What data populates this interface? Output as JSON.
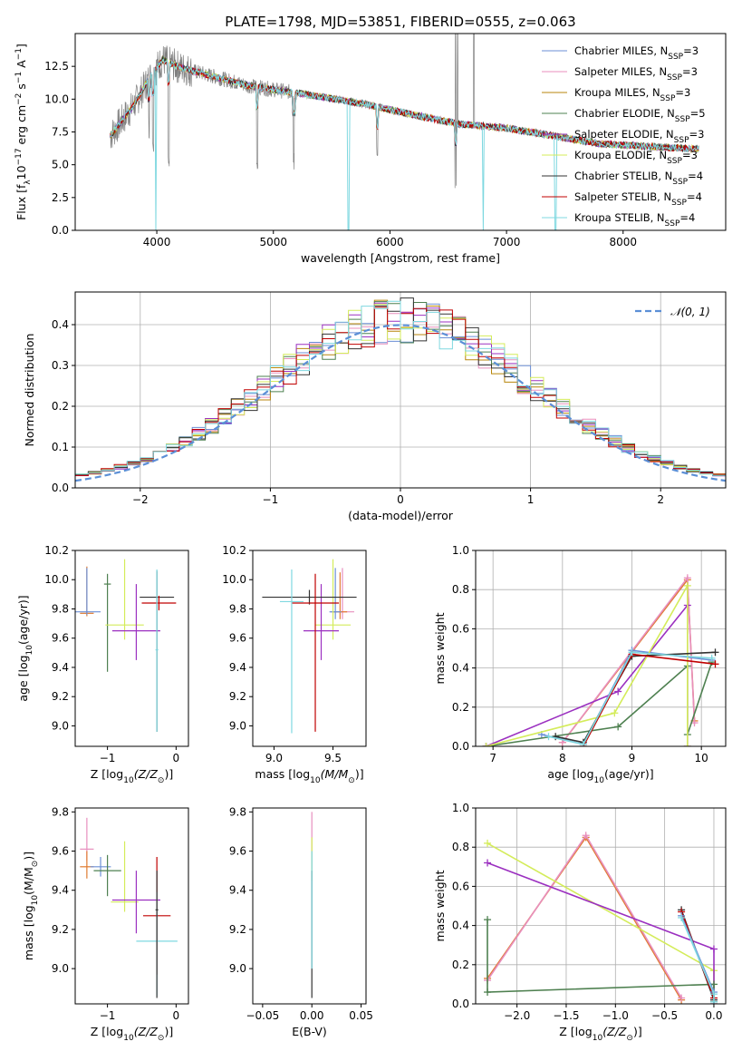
{
  "figure": {
    "title": "PLATE=1798, MJD=53851, FIBERID=0555, z=0.063"
  },
  "chart_data": [
    {
      "id": "spectrum",
      "type": "line",
      "xlabel": "wavelength [Angstrom, rest frame]",
      "ylabel": "Flux [f",
      "ylabel_sub": "λ",
      "ylabel_rest": "10",
      "ylabel_sup1": "−17",
      "ylabel_rest2": " erg cm",
      "ylabel_sup2": "−2",
      "ylabel_rest3": " s",
      "ylabel_sup3": "−1",
      "ylabel_rest4": " A",
      "ylabel_sup4": "−1",
      "ylabel_end": "]",
      "xlim": [
        3300,
        8880
      ],
      "ylim": [
        0,
        15
      ],
      "xticks": [
        4000,
        5000,
        6000,
        7000,
        8000
      ],
      "xtick_labels": [
        "4000",
        "5000",
        "6000",
        "7000",
        "8000"
      ],
      "yticks": [
        0,
        2.5,
        5,
        7.5,
        10,
        12.5
      ],
      "ytick_labels": [
        "0.0",
        "2.5",
        "5.0",
        "7.5",
        "10.0",
        "12.5"
      ],
      "legend_position": "top-right",
      "legend": [
        {
          "pre": "Chabrier MILES, N",
          "sub": "SSP",
          "post": "=3",
          "color": "#6b8fd6"
        },
        {
          "pre": "Salpeter MILES, N",
          "sub": "SSP",
          "post": "=3",
          "color": "#e88fbe"
        },
        {
          "pre": "Kroupa MILES, N",
          "sub": "SSP",
          "post": "=3",
          "color": "#b8860b"
        },
        {
          "pre": "Chabrier ELODIE, N",
          "sub": "SSP",
          "post": "=5",
          "color": "#4e8050"
        },
        {
          "pre": "Salpeter ELODIE, N",
          "sub": "SSP",
          "post": "=3",
          "color": "#9b30c0"
        },
        {
          "pre": "Kroupa ELODIE, N",
          "sub": "SSP",
          "post": "=3",
          "color": "#d4ec5a"
        },
        {
          "pre": "Chabrier STELIB, N",
          "sub": "SSP",
          "post": "=4",
          "color": "#333333"
        },
        {
          "pre": "Salpeter STELIB, N",
          "sub": "SSP",
          "post": "=4",
          "color": "#c00000"
        },
        {
          "pre": "Kroupa STELIB, N",
          "sub": "SSP",
          "post": "=4",
          "color": "#7fd8e0"
        }
      ],
      "data_color": "#808080",
      "continuum": [
        [
          3600,
          7.2
        ],
        [
          3800,
          9.5
        ],
        [
          3950,
          11.8
        ],
        [
          4050,
          13.0
        ],
        [
          4200,
          12.4
        ],
        [
          4500,
          11.7
        ],
        [
          4800,
          11.0
        ],
        [
          5100,
          10.6
        ],
        [
          5400,
          10.2
        ],
        [
          5800,
          9.6
        ],
        [
          6200,
          8.8
        ],
        [
          6600,
          8.1
        ],
        [
          7000,
          7.8
        ],
        [
          7400,
          7.2
        ],
        [
          7800,
          6.6
        ],
        [
          8200,
          6.4
        ],
        [
          8650,
          6.2
        ]
      ],
      "absorption_features": [
        [
          3933,
          7.0
        ],
        [
          3968,
          6.0
        ],
        [
          4102,
          4.0
        ],
        [
          4861,
          3.5
        ],
        [
          5175,
          4.5
        ],
        [
          5890,
          4.5
        ],
        [
          6563,
          3.0
        ]
      ],
      "model_dips": [
        [
          3990,
          0
        ],
        [
          5645,
          0
        ],
        [
          6800,
          0
        ],
        [
          7420,
          0
        ]
      ],
      "emission_spikes": [
        [
          6563,
          15
        ],
        [
          6580,
          15
        ],
        [
          6720,
          15
        ]
      ]
    },
    {
      "id": "residuals",
      "type": "histogram",
      "xlabel": "(data-model)/error",
      "ylabel": "Normed distribution",
      "xlim": [
        -2.5,
        2.5
      ],
      "ylim": [
        0,
        0.48
      ],
      "xticks": [
        -2,
        -1,
        0,
        1,
        2
      ],
      "xtick_labels": [
        "−2",
        "−1",
        "0",
        "1",
        "2"
      ],
      "yticks": [
        0,
        0.1,
        0.2,
        0.3,
        0.4
      ],
      "ytick_labels": [
        "0.0",
        "0.1",
        "0.2",
        "0.3",
        "0.4"
      ],
      "grid": true,
      "legend_position": "top-right",
      "normal_label": "𝒩(0, 1)",
      "normal_color": "#5b8fd6",
      "bin_width": 0.1
    },
    {
      "id": "age-vs-Z",
      "type": "errorbar",
      "xlabel": "Z [log",
      "xlabel_sub": "10",
      "xlabel_rest": "(Z/Z",
      "xlabel_sub2": "⊙",
      "xlabel_end": ")]",
      "ylabel": "age  [log",
      "ylabel_sub": "10",
      "ylabel_rest": "(age/yr)]",
      "xlim": [
        -1.47,
        0.18
      ],
      "ylim": [
        8.86,
        10.2
      ],
      "xticks": [
        -1,
        0
      ],
      "xtick_labels": [
        "−1",
        "0"
      ],
      "yticks": [
        9.0,
        9.2,
        9.4,
        9.6,
        9.8,
        10.0,
        10.2
      ],
      "ytick_labels": [
        "9.0",
        "9.2",
        "9.4",
        "9.6",
        "9.8",
        "10.0",
        "10.2"
      ],
      "points": [
        {
          "x": -1.3,
          "y": 9.77,
          "xerr": 0.1,
          "yerr": [
            0.02,
            0.32
          ],
          "color": "#e07b30"
        },
        {
          "x": -1.3,
          "y": 9.78,
          "xerr": 0.2,
          "yerr": [
            0.02,
            0.3
          ],
          "color": "#6b8fd6"
        },
        {
          "x": -1.0,
          "y": 9.97,
          "xerr": 0.05,
          "yerr": [
            0.6,
            0.07
          ],
          "color": "#4e8050"
        },
        {
          "x": -0.75,
          "y": 9.69,
          "xerr": 0.28,
          "yerr": [
            0.1,
            0.45
          ],
          "color": "#d4ec5a"
        },
        {
          "x": -0.58,
          "y": 9.65,
          "xerr": 0.35,
          "yerr": [
            0.2,
            0.32
          ],
          "color": "#9b30c0"
        },
        {
          "x": -0.28,
          "y": 9.88,
          "xerr": 0.25,
          "yerr": [
            0.92,
            0.18
          ],
          "color": "#333333"
        },
        {
          "x": -0.25,
          "y": 9.84,
          "xerr": 0.25,
          "yerr": [
            0.05,
            0.05
          ],
          "color": "#c00000"
        },
        {
          "x": -0.28,
          "y": 9.52,
          "xerr": 0.02,
          "yerr": [
            0.56,
            0.55
          ],
          "color": "#7fd8e0"
        }
      ]
    },
    {
      "id": "age-vs-mass",
      "type": "errorbar",
      "xlabel": "mass [log",
      "xlabel_sub": "10",
      "xlabel_rest": "(M/M",
      "xlabel_sub2": "⊙",
      "xlabel_end": ")]",
      "ylabel": "",
      "xlim": [
        8.82,
        9.78
      ],
      "ylim": [
        8.86,
        10.2
      ],
      "xticks": [
        9.0,
        9.5
      ],
      "xtick_labels": [
        "9.0",
        "9.5"
      ],
      "yticks": [
        9.0,
        9.2,
        9.4,
        9.6,
        9.8,
        10.0,
        10.2
      ],
      "ytick_labels": [
        "9.0",
        "9.2",
        "9.4",
        "9.6",
        "9.8",
        "10.0",
        "10.2"
      ],
      "points": [
        {
          "x": 9.58,
          "y": 9.78,
          "xerr": 0.1,
          "yerr": [
            0.05,
            0.3
          ],
          "color": "#e88fbe"
        },
        {
          "x": 9.56,
          "y": 9.78,
          "xerr": 0.06,
          "yerr": [
            0.05,
            0.27
          ],
          "color": "#e07b30"
        },
        {
          "x": 9.52,
          "y": 9.78,
          "xerr": 0.05,
          "yerr": [
            0.05,
            0.3
          ],
          "color": "#6b8fd6"
        },
        {
          "x": 9.5,
          "y": 9.69,
          "xerr": 0.15,
          "yerr": [
            0.1,
            0.45
          ],
          "color": "#d4ec5a"
        },
        {
          "x": 9.4,
          "y": 9.65,
          "xerr": 0.15,
          "yerr": [
            0.2,
            0.32
          ],
          "color": "#9b30c0"
        },
        {
          "x": 9.3,
          "y": 9.88,
          "xerr": 0.4,
          "yerr": [
            0.05,
            0.05
          ],
          "color": "#333333"
        },
        {
          "x": 9.35,
          "y": 9.84,
          "xerr": 0.2,
          "yerr": [
            0.88,
            0.2
          ],
          "color": "#c00000"
        },
        {
          "x": 9.15,
          "y": 9.85,
          "xerr": 0.1,
          "yerr": [
            0.9,
            0.22
          ],
          "color": "#7fd8e0"
        }
      ]
    },
    {
      "id": "weight-vs-age",
      "type": "line",
      "xlabel": "age  [log",
      "xlabel_sub": "10",
      "xlabel_rest": "(age/yr)]",
      "ylabel": "mass weight",
      "xlim": [
        6.75,
        10.35
      ],
      "ylim": [
        0,
        1.0
      ],
      "xticks": [
        7,
        8,
        9,
        10
      ],
      "xtick_labels": [
        "7",
        "8",
        "9",
        "10"
      ],
      "yticks": [
        0,
        0.2,
        0.4,
        0.6,
        0.8,
        1.0
      ],
      "ytick_labels": [
        "0.0",
        "0.2",
        "0.4",
        "0.6",
        "0.8",
        "1.0"
      ],
      "grid": true,
      "series": [
        {
          "color": "#e07b30",
          "points": [
            [
              8.0,
              0.02
            ],
            [
              9.8,
              0.85
            ],
            [
              9.9,
              0.13
            ]
          ]
        },
        {
          "color": "#e88fbe",
          "points": [
            [
              8.0,
              0.02
            ],
            [
              9.8,
              0.86
            ],
            [
              9.9,
              0.12
            ]
          ]
        },
        {
          "color": "#6b8fd6",
          "points": [
            [
              7.7,
              0.06
            ],
            [
              8.3,
              0.01
            ],
            [
              9.0,
              0.49
            ],
            [
              10.15,
              0.44
            ]
          ]
        },
        {
          "color": "#4e8050",
          "points": [
            [
              6.9,
              0.0
            ],
            [
              8.8,
              0.1
            ],
            [
              9.8,
              0.41
            ],
            [
              9.8,
              0.06
            ],
            [
              10.15,
              0.43
            ]
          ]
        },
        {
          "color": "#9b30c0",
          "points": [
            [
              6.9,
              0.0
            ],
            [
              8.8,
              0.28
            ],
            [
              9.8,
              0.72
            ],
            [
              9.8,
              0.0
            ]
          ]
        },
        {
          "color": "#d4ec5a",
          "points": [
            [
              6.9,
              0.0
            ],
            [
              8.75,
              0.17
            ],
            [
              9.8,
              0.82
            ],
            [
              9.8,
              0.0
            ]
          ]
        },
        {
          "color": "#333333",
          "points": [
            [
              7.9,
              0.05
            ],
            [
              8.3,
              0.02
            ],
            [
              9.0,
              0.46
            ],
            [
              10.2,
              0.48
            ]
          ]
        },
        {
          "color": "#c00000",
          "points": [
            [
              8.3,
              0.0
            ],
            [
              9.0,
              0.47
            ],
            [
              10.2,
              0.42
            ]
          ]
        },
        {
          "color": "#7fd8e0",
          "points": [
            [
              7.8,
              0.05
            ],
            [
              8.3,
              0.01
            ],
            [
              9.0,
              0.48
            ],
            [
              10.15,
              0.45
            ]
          ]
        }
      ]
    },
    {
      "id": "mass-vs-Z",
      "type": "errorbar",
      "xlabel": "Z [log",
      "xlabel_sub": "10",
      "xlabel_rest": "(Z/Z",
      "xlabel_sub2": "⊙",
      "xlabel_end": ")]",
      "ylabel": "mass [log",
      "ylabel_sub": "10",
      "ylabel_rest": "(M/M",
      "ylabel_sub2": "⊙",
      "ylabel_end": ")]",
      "xlim": [
        -1.47,
        0.18
      ],
      "ylim": [
        8.82,
        9.82
      ],
      "xticks": [
        -1,
        0
      ],
      "xtick_labels": [
        "−1",
        "0"
      ],
      "yticks": [
        9.0,
        9.2,
        9.4,
        9.6,
        9.8
      ],
      "ytick_labels": [
        "9.0",
        "9.2",
        "9.4",
        "9.6",
        "9.8"
      ],
      "points": [
        {
          "x": -1.3,
          "y": 9.61,
          "xerr": 0.1,
          "yerr": [
            0.06,
            0.16
          ],
          "color": "#e88fbe"
        },
        {
          "x": -1.3,
          "y": 9.52,
          "xerr": 0.1,
          "yerr": [
            0.06,
            0.08
          ],
          "color": "#e07b30"
        },
        {
          "x": -1.1,
          "y": 9.52,
          "xerr": 0.15,
          "yerr": [
            0.05,
            0.05
          ],
          "color": "#6b8fd6"
        },
        {
          "x": -1.0,
          "y": 9.5,
          "xerr": 0.2,
          "yerr": [
            0.13,
            0.08
          ],
          "color": "#4e8050"
        },
        {
          "x": -0.75,
          "y": 9.34,
          "xerr": 0.2,
          "yerr": [
            0.05,
            0.31
          ],
          "color": "#d4ec5a"
        },
        {
          "x": -0.58,
          "y": 9.35,
          "xerr": 0.35,
          "yerr": [
            0.17,
            0.15
          ],
          "color": "#9b30c0"
        },
        {
          "x": -0.28,
          "y": 9.27,
          "xerr": 0.2,
          "yerr": [
            0.3,
            0.3
          ],
          "color": "#c00000"
        },
        {
          "x": -0.28,
          "y": 9.14,
          "xerr": 0.3,
          "yerr": [
            0.28,
            0.25
          ],
          "color": "#7fd8e0"
        },
        {
          "x": -0.28,
          "y": 9.3,
          "xerr": 0.02,
          "yerr": [
            0.45,
            0.2
          ],
          "color": "#333333"
        }
      ]
    },
    {
      "id": "mass-vs-ebv",
      "type": "errorbar",
      "xlabel": "E(B-V)",
      "ylabel": "",
      "xlim": [
        -0.06,
        0.055
      ],
      "ylim": [
        8.82,
        9.82
      ],
      "xticks": [
        -0.05,
        0,
        0.05
      ],
      "xtick_labels": [
        "−0.05",
        "0.00",
        "0.05"
      ],
      "yticks": [
        9.0,
        9.2,
        9.4,
        9.6,
        9.8
      ],
      "ytick_labels": [
        "9.0",
        "9.2",
        "9.4",
        "9.6",
        "9.8"
      ],
      "points": [
        {
          "x": 0.0,
          "y": 9.6,
          "xerr": 0,
          "yerr": [
            0.1,
            0.2
          ],
          "color": "#e88fbe"
        },
        {
          "x": 0.0,
          "y": 9.55,
          "xerr": 0,
          "yerr": [
            0.1,
            0.12
          ],
          "color": "#d4ec5a"
        },
        {
          "x": 0.0,
          "y": 9.4,
          "xerr": 0,
          "yerr": [
            0.55,
            0.1
          ],
          "color": "#333333"
        },
        {
          "x": 0.0,
          "y": 9.3,
          "xerr": 0,
          "yerr": [
            0.3,
            0.3
          ],
          "color": "#7fd8e0"
        }
      ]
    },
    {
      "id": "weight-vs-Z",
      "type": "line",
      "xlabel": "Z [log",
      "xlabel_sub": "10",
      "xlabel_rest": "(Z/Z",
      "xlabel_sub2": "⊙",
      "xlabel_end": ")]",
      "ylabel": "mass weight",
      "xlim": [
        -2.42,
        0.12
      ],
      "ylim": [
        0,
        1.0
      ],
      "xticks": [
        -2.0,
        -1.5,
        -1.0,
        -0.5,
        0.0
      ],
      "xtick_labels": [
        "−2.0",
        "−1.5",
        "−1.0",
        "−0.5",
        "0.0"
      ],
      "yticks": [
        0,
        0.2,
        0.4,
        0.6,
        0.8,
        1.0
      ],
      "ytick_labels": [
        "0.0",
        "0.2",
        "0.4",
        "0.6",
        "0.8",
        "1.0"
      ],
      "grid": true,
      "series": [
        {
          "color": "#e07b30",
          "points": [
            [
              -2.3,
              0.13
            ],
            [
              -1.3,
              0.85
            ],
            [
              -0.33,
              0.02
            ]
          ]
        },
        {
          "color": "#e88fbe",
          "points": [
            [
              -2.3,
              0.12
            ],
            [
              -1.3,
              0.86
            ],
            [
              -0.33,
              0.03
            ]
          ]
        },
        {
          "color": "#d4ec5a",
          "points": [
            [
              -2.3,
              0.82
            ],
            [
              0.0,
              0.17
            ],
            [
              0.0,
              0.0
            ]
          ]
        },
        {
          "color": "#9b30c0",
          "points": [
            [
              -2.3,
              0.72
            ],
            [
              0.0,
              0.28
            ],
            [
              0.0,
              0.0
            ]
          ]
        },
        {
          "color": "#4e8050",
          "points": [
            [
              -2.3,
              0.43
            ],
            [
              -2.3,
              0.06
            ],
            [
              0.0,
              0.1
            ],
            [
              0.0,
              0.01
            ]
          ]
        },
        {
          "color": "#333333",
          "points": [
            [
              -0.33,
              0.48
            ],
            [
              0.0,
              0.02
            ]
          ]
        },
        {
          "color": "#c00000",
          "points": [
            [
              -0.33,
              0.47
            ],
            [
              0.0,
              0.03
            ]
          ]
        },
        {
          "color": "#6b8fd6",
          "points": [
            [
              -0.33,
              0.45
            ],
            [
              0.0,
              0.06
            ]
          ]
        },
        {
          "color": "#7fd8e0",
          "points": [
            [
              -0.33,
              0.44
            ],
            [
              0.0,
              0.05
            ],
            [
              0.0,
              0.01
            ]
          ]
        }
      ]
    }
  ]
}
